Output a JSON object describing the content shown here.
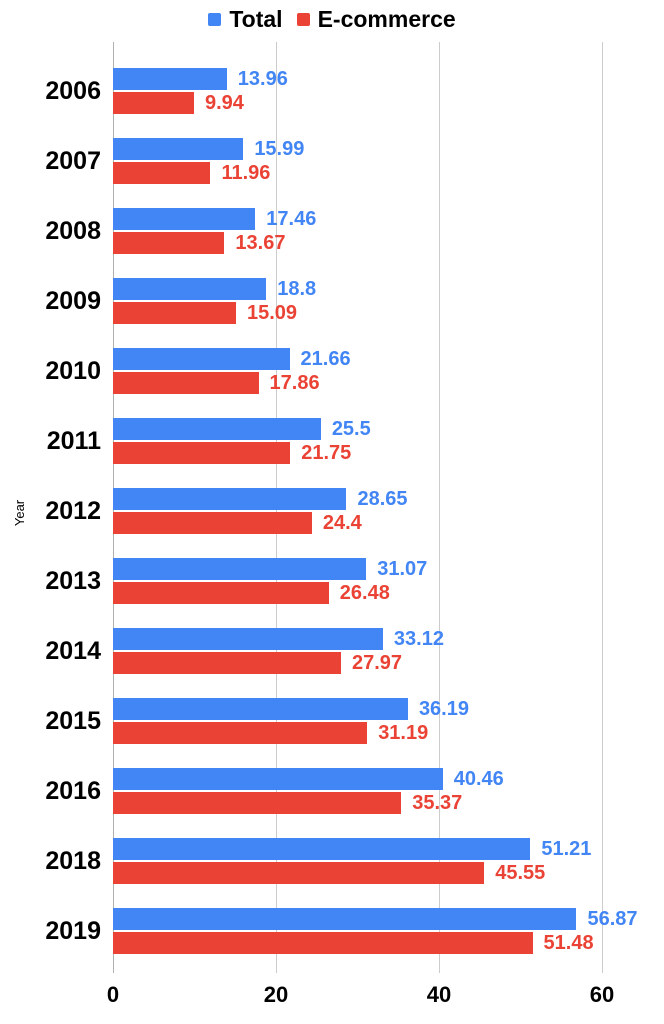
{
  "chart_data": {
    "type": "bar",
    "orientation": "horizontal",
    "title": "",
    "xlabel": "",
    "ylabel": "Year",
    "legend_position": "top",
    "grid": true,
    "x_ticks": [
      0,
      20,
      40,
      60
    ],
    "x_tick_labels": [
      "0",
      "20",
      "40",
      "60"
    ],
    "x_range": [
      0,
      67.4
    ],
    "categories": [
      "2006",
      "2007",
      "2008",
      "2009",
      "2010",
      "2011",
      "2012",
      "2013",
      "2014",
      "2015",
      "2016",
      "2018",
      "2019"
    ],
    "series": [
      {
        "name": "Total",
        "color": "#4285F4",
        "values": [
          13.96,
          15.99,
          17.46,
          18.8,
          21.66,
          25.5,
          28.65,
          31.07,
          33.12,
          36.19,
          40.46,
          51.21,
          56.87
        ],
        "labels": [
          "13.96",
          "15.99",
          "17.46",
          "18.8",
          "21.66",
          "25.5",
          "28.65",
          "31.07",
          "33.12",
          "36.19",
          "40.46",
          "51.21",
          "56.87"
        ]
      },
      {
        "name": "E-commerce",
        "color": "#EA4335",
        "values": [
          9.94,
          11.96,
          13.67,
          15.09,
          17.86,
          21.75,
          24.4,
          26.48,
          27.97,
          31.19,
          35.37,
          45.55,
          51.48
        ],
        "labels": [
          "9.94",
          "11.96",
          "13.67",
          "15.09",
          "17.86",
          "21.75",
          "24.4",
          "26.48",
          "27.97",
          "31.19",
          "35.37",
          "45.55",
          "51.48"
        ]
      }
    ]
  },
  "colors": {
    "total": "#4285F4",
    "ecommerce": "#EA4335",
    "gridline": "#cccccc",
    "zero_line": "#b0b0b0",
    "text": "#000000",
    "background": "#ffffff"
  }
}
